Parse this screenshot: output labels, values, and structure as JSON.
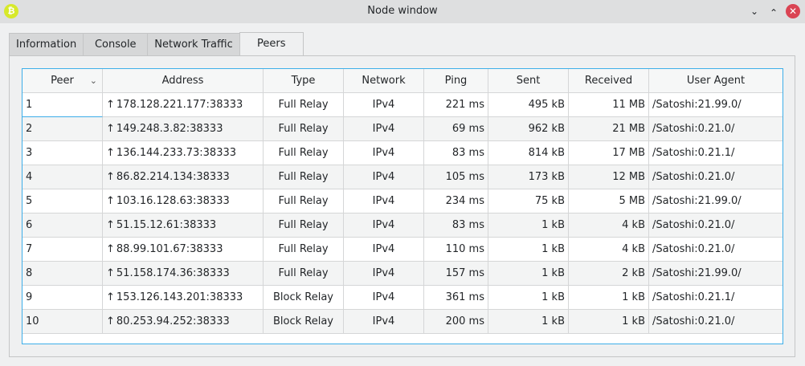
{
  "window": {
    "title": "Node window",
    "app_icon": "bitcoin-icon"
  },
  "tabs": [
    {
      "label": "Information"
    },
    {
      "label": "Console"
    },
    {
      "label": "Network Traffic"
    },
    {
      "label": "Peers",
      "active": true
    }
  ],
  "table": {
    "columns": [
      "Peer",
      "Address",
      "Type",
      "Network",
      "Ping",
      "Sent",
      "Received",
      "User Agent"
    ],
    "sort_column": "Peer",
    "rows": [
      [
        "1",
        "178.128.221.177:38333",
        "Full Relay",
        "IPv4",
        "221 ms",
        "495 kB",
        "11 MB",
        "/Satoshi:21.99.0/"
      ],
      [
        "2",
        "149.248.3.82:38333",
        "Full Relay",
        "IPv4",
        "69 ms",
        "962 kB",
        "21 MB",
        "/Satoshi:0.21.0/"
      ],
      [
        "3",
        "136.144.233.73:38333",
        "Full Relay",
        "IPv4",
        "83 ms",
        "814 kB",
        "17 MB",
        "/Satoshi:0.21.1/"
      ],
      [
        "4",
        "86.82.214.134:38333",
        "Full Relay",
        "IPv4",
        "105 ms",
        "173 kB",
        "12 MB",
        "/Satoshi:0.21.0/"
      ],
      [
        "5",
        "103.16.128.63:38333",
        "Full Relay",
        "IPv4",
        "234 ms",
        "75 kB",
        "5 MB",
        "/Satoshi:21.99.0/"
      ],
      [
        "6",
        "51.15.12.61:38333",
        "Full Relay",
        "IPv4",
        "83 ms",
        "1 kB",
        "4 kB",
        "/Satoshi:0.21.0/"
      ],
      [
        "7",
        "88.99.101.67:38333",
        "Full Relay",
        "IPv4",
        "110 ms",
        "1 kB",
        "4 kB",
        "/Satoshi:0.21.0/"
      ],
      [
        "8",
        "51.158.174.36:38333",
        "Full Relay",
        "IPv4",
        "157 ms",
        "1 kB",
        "2 kB",
        "/Satoshi:21.99.0/"
      ],
      [
        "9",
        "153.126.143.201:38333",
        "Block Relay",
        "IPv4",
        "361 ms",
        "1 kB",
        "1 kB",
        "/Satoshi:0.21.1/"
      ],
      [
        "10",
        "80.253.94.252:38333",
        "Block Relay",
        "IPv4",
        "200 ms",
        "1 kB",
        "1 kB",
        "/Satoshi:0.21.0/"
      ]
    ]
  },
  "direction_icon": "↑"
}
